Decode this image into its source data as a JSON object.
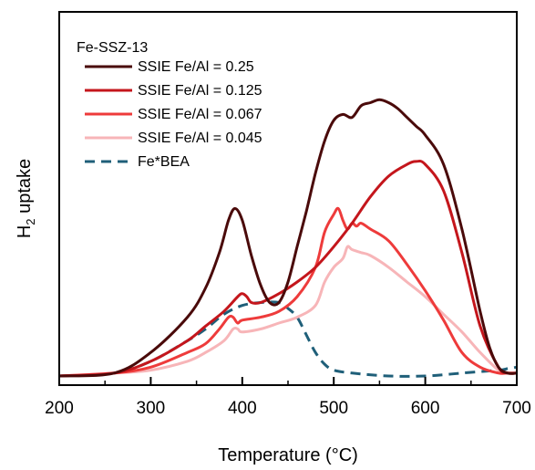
{
  "chart_data": {
    "type": "line",
    "title": "",
    "xlabel": "Temperature (°C)",
    "ylabel": {
      "main": "H",
      "sub": "2",
      "rest": " uptake"
    },
    "xlim": [
      200,
      700
    ],
    "ylim": [
      0,
      1
    ],
    "xticks": [
      200,
      300,
      400,
      500,
      600,
      700
    ],
    "y_tick_labels": false,
    "grid": false,
    "legend": {
      "position": "top-left",
      "title": "Fe-SSZ-13"
    },
    "series": [
      {
        "name": "SSIE Fe/Al = 0.25",
        "color": "#4a0a0a",
        "dash": "solid",
        "x": [
          200,
          260,
          300,
          340,
          360,
          375,
          385,
          392,
          400,
          410,
          420,
          430,
          440,
          450,
          460,
          470,
          480,
          490,
          500,
          510,
          520,
          530,
          540,
          550,
          560,
          570,
          580,
          590,
          600,
          620,
          640,
          660,
          670,
          680,
          690,
          700
        ],
        "y": [
          0.0,
          0.01,
          0.08,
          0.2,
          0.3,
          0.42,
          0.53,
          0.57,
          0.53,
          0.41,
          0.31,
          0.25,
          0.25,
          0.32,
          0.44,
          0.56,
          0.69,
          0.8,
          0.87,
          0.89,
          0.88,
          0.92,
          0.93,
          0.94,
          0.93,
          0.91,
          0.88,
          0.85,
          0.82,
          0.72,
          0.5,
          0.22,
          0.1,
          0.03,
          0.01,
          0.01
        ]
      },
      {
        "name": "SSIE Fe/Al = 0.125",
        "color": "#c4161c",
        "dash": "solid",
        "x": [
          200,
          260,
          300,
          340,
          360,
          380,
          395,
          400,
          405,
          410,
          420,
          440,
          460,
          480,
          500,
          520,
          540,
          560,
          580,
          590,
          600,
          620,
          640,
          660,
          680,
          690,
          700
        ],
        "y": [
          0.0,
          0.01,
          0.05,
          0.12,
          0.17,
          0.22,
          0.27,
          0.28,
          0.27,
          0.25,
          0.25,
          0.28,
          0.32,
          0.37,
          0.44,
          0.52,
          0.61,
          0.68,
          0.72,
          0.73,
          0.72,
          0.63,
          0.42,
          0.17,
          0.03,
          0.01,
          0.01
        ]
      },
      {
        "name": "SSIE Fe/Al = 0.067",
        "color": "#ee3b3b",
        "dash": "solid",
        "x": [
          200,
          260,
          300,
          340,
          360,
          375,
          385,
          390,
          395,
          400,
          420,
          440,
          460,
          480,
          490,
          500,
          505,
          510,
          515,
          520,
          525,
          530,
          540,
          560,
          580,
          600,
          620,
          640,
          660,
          680,
          690,
          700
        ],
        "y": [
          0.0,
          0.01,
          0.03,
          0.08,
          0.11,
          0.16,
          0.2,
          0.2,
          0.18,
          0.19,
          0.2,
          0.22,
          0.27,
          0.37,
          0.49,
          0.55,
          0.57,
          0.53,
          0.5,
          0.52,
          0.51,
          0.52,
          0.5,
          0.46,
          0.38,
          0.29,
          0.19,
          0.08,
          0.03,
          0.01,
          0.01,
          0.01
        ]
      },
      {
        "name": "SSIE Fe/Al = 0.045",
        "color": "#f7b5b8",
        "dash": "solid",
        "x": [
          200,
          260,
          300,
          340,
          360,
          380,
          390,
          395,
          400,
          420,
          440,
          460,
          480,
          490,
          500,
          510,
          515,
          520,
          530,
          540,
          560,
          580,
          600,
          620,
          640,
          660,
          680,
          690,
          700
        ],
        "y": [
          0.0,
          0.01,
          0.02,
          0.05,
          0.08,
          0.12,
          0.16,
          0.16,
          0.15,
          0.16,
          0.18,
          0.2,
          0.24,
          0.32,
          0.37,
          0.4,
          0.44,
          0.43,
          0.42,
          0.41,
          0.37,
          0.32,
          0.27,
          0.21,
          0.15,
          0.08,
          0.02,
          0.01,
          0.01
        ]
      },
      {
        "name": "Fe*BEA",
        "color": "#1f5f79",
        "dash": "dashed",
        "x": [
          200,
          260,
          300,
          340,
          360,
          380,
          400,
          420,
          440,
          450,
          460,
          470,
          480,
          490,
          500,
          520,
          560,
          600,
          640,
          680,
          690,
          700
        ],
        "y": [
          0.0,
          0.01,
          0.05,
          0.12,
          0.16,
          0.21,
          0.24,
          0.25,
          0.25,
          0.23,
          0.2,
          0.14,
          0.08,
          0.04,
          0.02,
          0.01,
          0.0,
          0.0,
          0.01,
          0.02,
          0.025,
          0.03
        ]
      }
    ]
  }
}
